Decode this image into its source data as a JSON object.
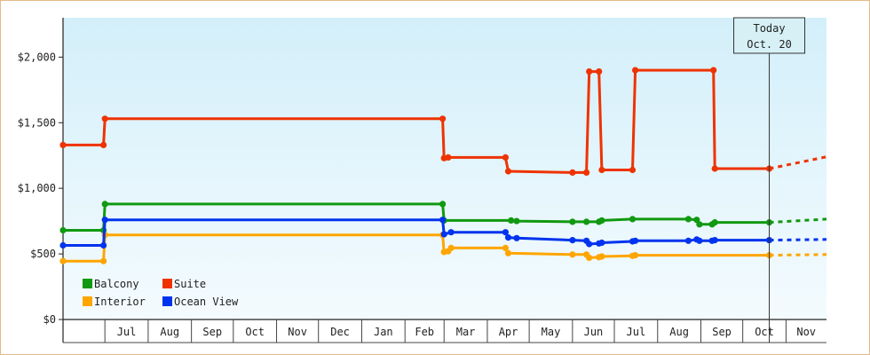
{
  "chart_data": {
    "type": "line",
    "step": true,
    "ylim": [
      0,
      2300
    ],
    "x_range": [
      "2018-06-01",
      "2019-11-30"
    ],
    "y_ticks": [
      {
        "value": 0,
        "label": "$0"
      },
      {
        "value": 500,
        "label": "$500"
      },
      {
        "value": 1000,
        "label": "$1,000"
      },
      {
        "value": 1500,
        "label": "$1,500"
      },
      {
        "value": 2000,
        "label": "$2,000"
      }
    ],
    "x_ticks": [
      {
        "date": "2018-07-01",
        "label": "Jul"
      },
      {
        "date": "2018-08-01",
        "label": "Aug"
      },
      {
        "date": "2018-09-01",
        "label": "Sep"
      },
      {
        "date": "2018-10-01",
        "label": "Oct"
      },
      {
        "date": "2018-11-01",
        "label": "Nov"
      },
      {
        "date": "2018-12-01",
        "label": "Dec"
      },
      {
        "date": "2019-01-01",
        "label": "Jan"
      },
      {
        "date": "2019-02-01",
        "label": "Feb"
      },
      {
        "date": "2019-03-01",
        "label": "Mar"
      },
      {
        "date": "2019-04-01",
        "label": "Apr"
      },
      {
        "date": "2019-05-01",
        "label": "May"
      },
      {
        "date": "2019-06-01",
        "label": "Jun"
      },
      {
        "date": "2019-07-01",
        "label": "Jul"
      },
      {
        "date": "2019-08-01",
        "label": "Aug"
      },
      {
        "date": "2019-09-01",
        "label": "Sep"
      },
      {
        "date": "2019-10-01",
        "label": "Oct"
      },
      {
        "date": "2019-11-01",
        "label": "Nov"
      }
    ],
    "today": {
      "date": "2019-10-20",
      "line1": "Today",
      "line2": "Oct. 20"
    },
    "series": [
      {
        "name": "Suite",
        "color": "#ee3300",
        "points": [
          [
            "2018-06-01",
            1330
          ],
          [
            "2018-06-30",
            1330
          ],
          [
            "2018-07-01",
            1530
          ],
          [
            "2019-02-28",
            1530
          ],
          [
            "2019-03-01",
            1230
          ],
          [
            "2019-03-04",
            1235
          ],
          [
            "2019-04-14",
            1235
          ],
          [
            "2019-04-16",
            1130
          ],
          [
            "2019-06-01",
            1120
          ],
          [
            "2019-06-11",
            1120
          ],
          [
            "2019-06-13",
            1890
          ],
          [
            "2019-06-20",
            1890
          ],
          [
            "2019-06-22",
            1140
          ],
          [
            "2019-07-14",
            1140
          ],
          [
            "2019-07-16",
            1900
          ],
          [
            "2019-09-10",
            1900
          ],
          [
            "2019-09-11",
            1150
          ],
          [
            "2019-10-20",
            1150
          ]
        ],
        "projection": [
          [
            "2019-10-20",
            1150
          ],
          [
            "2019-11-30",
            1240
          ]
        ]
      },
      {
        "name": "Balcony",
        "color": "#119911",
        "points": [
          [
            "2018-06-01",
            680
          ],
          [
            "2018-06-30",
            680
          ],
          [
            "2018-07-01",
            880
          ],
          [
            "2019-02-28",
            880
          ],
          [
            "2019-03-01",
            755
          ],
          [
            "2019-04-18",
            755
          ],
          [
            "2019-04-22",
            750
          ],
          [
            "2019-06-01",
            745
          ],
          [
            "2019-06-11",
            745
          ],
          [
            "2019-06-20",
            745
          ],
          [
            "2019-06-22",
            755
          ],
          [
            "2019-07-14",
            765
          ],
          [
            "2019-08-23",
            765
          ],
          [
            "2019-08-29",
            760
          ],
          [
            "2019-08-31",
            725
          ],
          [
            "2019-09-09",
            725
          ],
          [
            "2019-09-11",
            740
          ],
          [
            "2019-10-20",
            740
          ]
        ],
        "projection": [
          [
            "2019-10-20",
            740
          ],
          [
            "2019-11-30",
            765
          ]
        ]
      },
      {
        "name": "Interior",
        "color": "#ffa500",
        "points": [
          [
            "2018-06-01",
            445
          ],
          [
            "2018-06-30",
            445
          ],
          [
            "2018-07-01",
            645
          ],
          [
            "2019-02-28",
            645
          ],
          [
            "2019-03-01",
            515
          ],
          [
            "2019-03-04",
            520
          ],
          [
            "2019-03-06",
            545
          ],
          [
            "2019-04-14",
            545
          ],
          [
            "2019-04-16",
            505
          ],
          [
            "2019-06-01",
            495
          ],
          [
            "2019-06-11",
            495
          ],
          [
            "2019-06-13",
            470
          ],
          [
            "2019-06-20",
            475
          ],
          [
            "2019-06-22",
            480
          ],
          [
            "2019-07-14",
            485
          ],
          [
            "2019-07-16",
            490
          ],
          [
            "2019-10-20",
            490
          ]
        ],
        "projection": [
          [
            "2019-10-20",
            490
          ],
          [
            "2019-11-30",
            495
          ]
        ]
      },
      {
        "name": "Ocean View",
        "color": "#0033ee",
        "points": [
          [
            "2018-06-01",
            565
          ],
          [
            "2018-06-30",
            565
          ],
          [
            "2018-07-01",
            760
          ],
          [
            "2019-02-28",
            760
          ],
          [
            "2019-03-01",
            650
          ],
          [
            "2019-03-06",
            665
          ],
          [
            "2019-04-14",
            665
          ],
          [
            "2019-04-16",
            625
          ],
          [
            "2019-04-22",
            620
          ],
          [
            "2019-06-01",
            605
          ],
          [
            "2019-06-11",
            600
          ],
          [
            "2019-06-13",
            575
          ],
          [
            "2019-06-20",
            580
          ],
          [
            "2019-06-22",
            585
          ],
          [
            "2019-07-14",
            595
          ],
          [
            "2019-07-16",
            600
          ],
          [
            "2019-08-23",
            600
          ],
          [
            "2019-08-29",
            610
          ],
          [
            "2019-08-31",
            600
          ],
          [
            "2019-09-09",
            600
          ],
          [
            "2019-09-11",
            605
          ],
          [
            "2019-10-20",
            605
          ]
        ],
        "projection": [
          [
            "2019-10-20",
            605
          ],
          [
            "2019-11-30",
            610
          ]
        ]
      }
    ],
    "legend": {
      "placement": "bottom-left",
      "items": [
        {
          "label": "Balcony",
          "color": "#119911"
        },
        {
          "label": "Suite",
          "color": "#ee3300"
        },
        {
          "label": "Interior",
          "color": "#ffa500"
        },
        {
          "label": "Ocean View",
          "color": "#0033ee"
        }
      ]
    }
  }
}
